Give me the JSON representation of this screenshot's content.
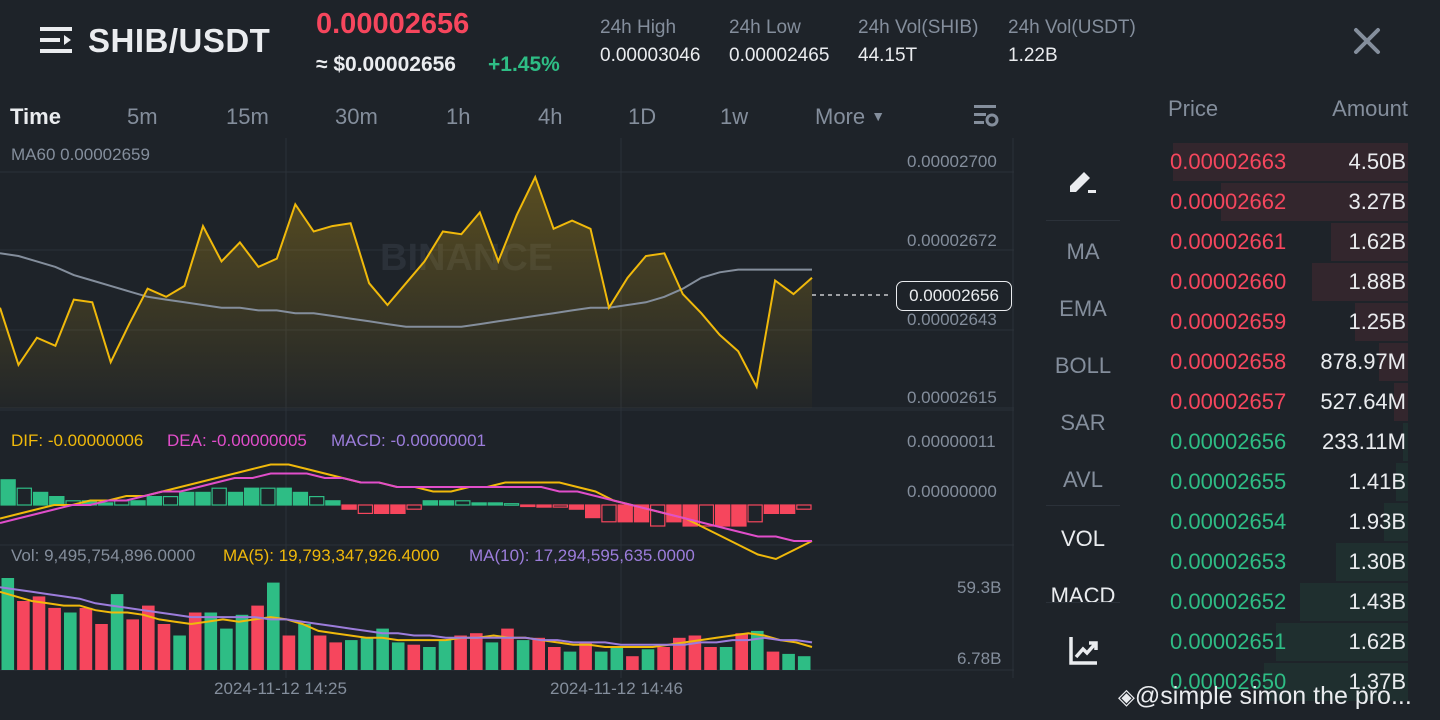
{
  "header": {
    "pair": "SHIB/USDT",
    "last_price": "0.00002656",
    "approx_price": "≈ $0.00002656",
    "change_pct": "+1.45%",
    "stats": [
      {
        "label": "24h High",
        "value": "0.00003046"
      },
      {
        "label": "24h Low",
        "value": "0.00002465"
      },
      {
        "label": "24h Vol(SHIB)",
        "value": "44.15T"
      },
      {
        "label": "24h Vol(USDT)",
        "value": "1.22B"
      }
    ]
  },
  "timeframes": [
    "Time",
    "5m",
    "15m",
    "30m",
    "1h",
    "4h",
    "1D",
    "1w",
    "More"
  ],
  "chart": {
    "ma_label": "MA60 0.00002659",
    "watermark": "BINANCE",
    "price_ticks": [
      "0.00002700",
      "0.00002672",
      "0.00002643",
      "0.00002615"
    ],
    "current_price_tag": "0.00002656",
    "macd_labels": {
      "dif": "DIF: -0.00000006",
      "dea": "DEA: -0.00000005",
      "macd": "MACD: -0.00000001"
    },
    "macd_ticks": [
      "0.00000011",
      "0.00000000"
    ],
    "vol_labels": {
      "vol": "Vol: 9,495,754,896.0000",
      "ma5": "MA(5): 19,793,347,926.4000",
      "ma10": "MA(10): 17,294,595,635.0000"
    },
    "vol_ticks": [
      "59.3B",
      "6.78B"
    ],
    "time_labels": [
      "2024-11-12 14:25",
      "2024-11-12 14:46"
    ]
  },
  "tools": [
    "MA",
    "EMA",
    "BOLL",
    "SAR",
    "AVL",
    "VOL",
    "MACD"
  ],
  "orderbook": {
    "price_header": "Price",
    "amount_header": "Amount",
    "asks": [
      {
        "price": "0.00002663",
        "amount": "4.50B",
        "depth": 0.98
      },
      {
        "price": "0.00002662",
        "amount": "3.27B",
        "depth": 0.78
      },
      {
        "price": "0.00002661",
        "amount": "1.62B",
        "depth": 0.32
      },
      {
        "price": "0.00002660",
        "amount": "1.88B",
        "depth": 0.4
      },
      {
        "price": "0.00002659",
        "amount": "1.25B",
        "depth": 0.22
      },
      {
        "price": "0.00002658",
        "amount": "878.97M",
        "depth": 0.12
      },
      {
        "price": "0.00002657",
        "amount": "527.64M",
        "depth": 0.06
      }
    ],
    "bids": [
      {
        "price": "0.00002656",
        "amount": "233.11M",
        "depth": 0.02
      },
      {
        "price": "0.00002655",
        "amount": "1.41B",
        "depth": 0.05
      },
      {
        "price": "0.00002654",
        "amount": "1.93B",
        "depth": 0.1
      },
      {
        "price": "0.00002653",
        "amount": "1.30B",
        "depth": 0.3
      },
      {
        "price": "0.00002652",
        "amount": "1.43B",
        "depth": 0.45
      },
      {
        "price": "0.00002651",
        "amount": "1.62B",
        "depth": 0.55
      },
      {
        "price": "0.00002650",
        "amount": "1.37B",
        "depth": 0.6
      }
    ]
  },
  "watermark_user": "@simple simon the pro...",
  "colors": {
    "up": "#2ebd85",
    "down": "#f6465d",
    "line": "#f0b90b",
    "ma": "#848e9c"
  },
  "series": {
    "price": [
      2.645e-05,
      2.624e-05,
      2.634e-05,
      2.631e-05,
      2.648e-05,
      2.647e-05,
      2.625e-05,
      2.639e-05,
      2.652e-05,
      2.649e-05,
      2.653e-05,
      2.675e-05,
      2.662e-05,
      2.669e-05,
      2.66e-05,
      2.663e-05,
      2.683e-05,
      2.673e-05,
      2.675e-05,
      2.676e-05,
      2.654e-05,
      2.646e-05,
      2.654e-05,
      2.662e-05,
      2.673e-05,
      2.672e-05,
      2.68e-05,
      2.662e-05,
      2.679e-05,
      2.693e-05,
      2.674e-05,
      2.677e-05,
      2.674e-05,
      2.645e-05,
      2.656e-05,
      2.664e-05,
      2.665e-05,
      2.65e-05,
      2.643e-05,
      2.635e-05,
      2.629e-05,
      2.616e-05,
      2.655e-05,
      2.65e-05,
      2.656e-05
    ],
    "ma60": [
      2.665e-05,
      2.664e-05,
      2.662e-05,
      2.66e-05,
      2.657e-05,
      2.655e-05,
      2.653e-05,
      2.651e-05,
      2.649e-05,
      2.648e-05,
      2.647e-05,
      2.646e-05,
      2.645e-05,
      2.645e-05,
      2.644e-05,
      2.644e-05,
      2.643e-05,
      2.643e-05,
      2.642e-05,
      2.641e-05,
      2.64e-05,
      2.639e-05,
      2.638e-05,
      2.638e-05,
      2.638e-05,
      2.638e-05,
      2.639e-05,
      2.64e-05,
      2.641e-05,
      2.642e-05,
      2.643e-05,
      2.644e-05,
      2.645e-05,
      2.645e-05,
      2.646e-05,
      2.647e-05,
      2.649e-05,
      2.652e-05,
      2.656e-05,
      2.658e-05,
      2.659e-05,
      2.659e-05,
      2.659e-05,
      2.659e-05,
      2.659e-05
    ],
    "macd_hist": [
      6,
      4,
      3,
      2,
      1,
      1,
      0.5,
      1,
      1,
      2,
      2,
      3,
      3,
      4,
      3,
      4,
      4,
      4,
      3,
      2,
      1,
      -1,
      -2,
      -2,
      -2,
      -1,
      1,
      1,
      1,
      0.5,
      0.5,
      0.3,
      -0.3,
      -0.5,
      -0.5,
      -1,
      -3,
      -4,
      -4,
      -4,
      -5,
      -4,
      -5,
      -5,
      -5,
      -5,
      -4,
      -2,
      -2,
      -1
    ],
    "macd_dif": [
      -3,
      -2,
      -1,
      0,
      0,
      1,
      1,
      2,
      2,
      3,
      4,
      5,
      6,
      7,
      8,
      9,
      9,
      8,
      7,
      6,
      5,
      5,
      4,
      4,
      3,
      3,
      4,
      4,
      5,
      5,
      5,
      5,
      4,
      3,
      1,
      0,
      -1,
      -2,
      -3,
      -5,
      -7,
      -9,
      -11,
      -12,
      -10,
      -8
    ],
    "macd_dea": [
      -4,
      -3,
      -2,
      -1,
      0,
      0,
      1,
      1,
      2,
      3,
      3,
      4,
      5,
      6,
      6,
      7,
      7,
      7,
      6,
      6,
      5,
      5,
      4,
      4,
      4,
      4,
      4,
      4,
      4,
      4,
      4,
      3,
      3,
      2,
      1,
      0,
      -1,
      -2,
      -3,
      -4,
      -5,
      -6,
      -7,
      -7,
      -8,
      -8
    ],
    "volume": [
      40,
      30,
      32,
      27,
      25,
      27,
      20,
      33,
      22,
      28,
      20,
      15,
      25,
      25,
      18,
      24,
      28,
      38,
      15,
      20,
      15,
      12,
      13,
      14,
      18,
      12,
      11,
      10,
      13,
      15,
      16,
      12,
      18,
      13,
      14,
      10,
      8,
      12,
      8,
      10,
      6,
      9,
      10,
      14,
      15,
      10,
      10,
      16,
      17,
      8,
      7,
      6
    ],
    "vol_up": [
      1,
      0,
      0,
      0,
      1,
      0,
      0,
      1,
      0,
      0,
      0,
      1,
      0,
      1,
      1,
      1,
      0,
      1,
      0,
      1,
      0,
      0,
      1,
      1,
      1,
      1,
      0,
      1,
      1,
      0,
      0,
      1,
      0,
      1,
      0,
      0,
      1,
      0,
      1,
      1,
      0,
      1,
      0,
      0,
      0,
      0,
      1,
      0,
      1,
      0,
      1,
      1
    ],
    "vol_ma5": [
      34,
      32,
      30,
      29,
      28,
      28,
      26,
      25,
      25,
      24,
      22,
      21,
      20,
      21,
      22,
      21,
      22,
      23,
      22,
      20,
      17,
      16,
      15,
      14,
      14,
      13,
      13,
      13,
      13,
      14,
      14,
      15,
      14,
      14,
      13,
      12,
      11,
      11,
      10,
      10,
      10,
      10,
      11,
      12,
      13,
      14,
      15,
      16,
      15,
      13,
      12,
      10
    ],
    "vol_ma10": [
      36,
      35,
      34,
      33,
      32,
      31,
      29,
      28,
      27,
      26,
      25,
      24,
      23,
      23,
      23,
      23,
      23,
      22,
      22,
      21,
      20,
      19,
      18,
      17,
      16,
      16,
      15,
      15,
      14,
      14,
      14,
      14,
      14,
      14,
      13,
      13,
      12,
      12,
      12,
      11,
      11,
      11,
      11,
      11,
      12,
      12,
      13,
      13,
      14,
      13,
      13,
      12
    ]
  }
}
